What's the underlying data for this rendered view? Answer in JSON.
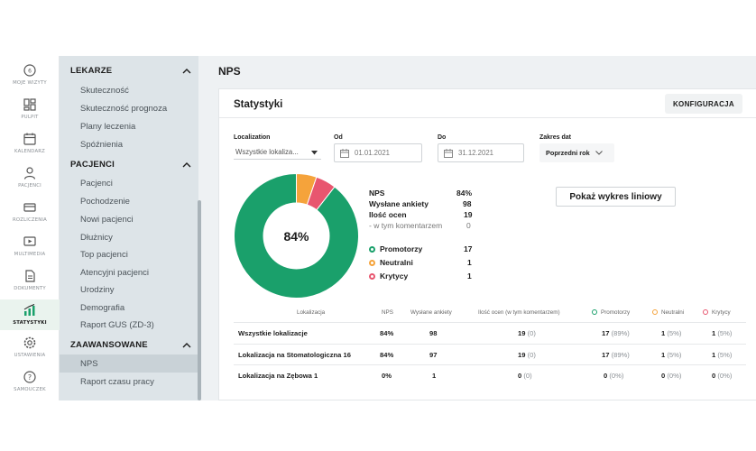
{
  "rail": [
    {
      "label": "MOJE WIZYTY",
      "icon": "clock-icon"
    },
    {
      "label": "PULPIT",
      "icon": "dashboard-icon"
    },
    {
      "label": "KALENDARZ",
      "icon": "calendar-icon"
    },
    {
      "label": "PACJENCI",
      "icon": "patients-icon"
    },
    {
      "label": "ROZLICZENIA",
      "icon": "billing-icon"
    },
    {
      "label": "MULTIMEDIA",
      "icon": "multimedia-icon"
    },
    {
      "label": "DOKUMENTY",
      "icon": "document-icon"
    },
    {
      "label": "STATYSTYKI",
      "icon": "statistics-icon"
    },
    {
      "label": "USTAWIENIA",
      "icon": "gear-icon"
    },
    {
      "label": "SAMOUCZEK",
      "icon": "help-icon"
    }
  ],
  "submenu": {
    "sections": [
      {
        "title": "LEKARZE",
        "items": [
          "Skuteczność",
          "Skuteczność prognoza",
          "Plany leczenia",
          "Spóźnienia"
        ]
      },
      {
        "title": "PACJENCI",
        "items": [
          "Pacjenci",
          "Pochodzenie",
          "Nowi pacjenci",
          "Dłużnicy",
          "Top pacjenci",
          "Atencyjni pacjenci",
          "Urodziny",
          "Demografia",
          "Raport GUS (ZD-3)"
        ]
      },
      {
        "title": "ZAAWANSOWANE",
        "items": [
          "NPS",
          "Raport czasu pracy"
        ]
      }
    ]
  },
  "page": {
    "title": "NPS"
  },
  "card": {
    "title": "Statystyki",
    "config_label": "KONFIGURACJA"
  },
  "filters": {
    "localization_label": "Localization",
    "localization_value": "Wszystkie lokaliza...",
    "from_label": "Od",
    "from_value": "01.01.2021",
    "to_label": "Do",
    "to_value": "31.12.2021",
    "range_label": "Zakres dat",
    "range_value": "Poprzedni rok"
  },
  "donut": {
    "center": "84%",
    "promoters": 17,
    "neutrals": 1,
    "critics": 1
  },
  "summary": {
    "nps_label": "NPS",
    "nps_value": "84%",
    "sent_label": "Wysłane ankiety",
    "sent_value": "98",
    "ratings_label": "Ilość ocen",
    "ratings_value": "19",
    "comments_label": "- w tym komentarzem",
    "comments_value": "0",
    "promoters_label": "Promotorzy",
    "promoters_value": "17",
    "neutrals_label": "Neutralni",
    "neutrals_value": "1",
    "critics_label": "Krytycy",
    "critics_value": "1"
  },
  "chart_button": "Pokaż wykres liniowy",
  "colors": {
    "promoters": "#1aa06b",
    "neutrals": "#f5a33b",
    "critics": "#e8566f"
  },
  "table": {
    "headers": {
      "loc": "Lokalizacja",
      "nps": "NPS",
      "sent": "Wysłane ankiety",
      "ratings": "Ilość ocen (w tym komentarzem)",
      "promoters": "Promotorzy",
      "neutrals": "Neutralni",
      "critics": "Krytycy"
    },
    "rows": [
      {
        "loc": "Wszystkie lokalizacje",
        "nps": "84%",
        "sent": "98",
        "ratings": "19",
        "comments": "(0)",
        "promoters": "17",
        "promoters_pct": "(89%)",
        "neutrals": "1",
        "neutrals_pct": "(5%)",
        "critics": "1",
        "critics_pct": "(5%)"
      },
      {
        "loc": "Lokalizacja na Stomatologiczna 16",
        "nps": "84%",
        "sent": "97",
        "ratings": "19",
        "comments": "(0)",
        "promoters": "17",
        "promoters_pct": "(89%)",
        "neutrals": "1",
        "neutrals_pct": "(5%)",
        "critics": "1",
        "critics_pct": "(5%)"
      },
      {
        "loc": "Lokalizacja na Zębowa 1",
        "nps": "0%",
        "sent": "1",
        "ratings": "0",
        "comments": "(0)",
        "promoters": "0",
        "promoters_pct": "(0%)",
        "neutrals": "0",
        "neutrals_pct": "(0%)",
        "critics": "0",
        "critics_pct": "(0%)"
      }
    ]
  }
}
